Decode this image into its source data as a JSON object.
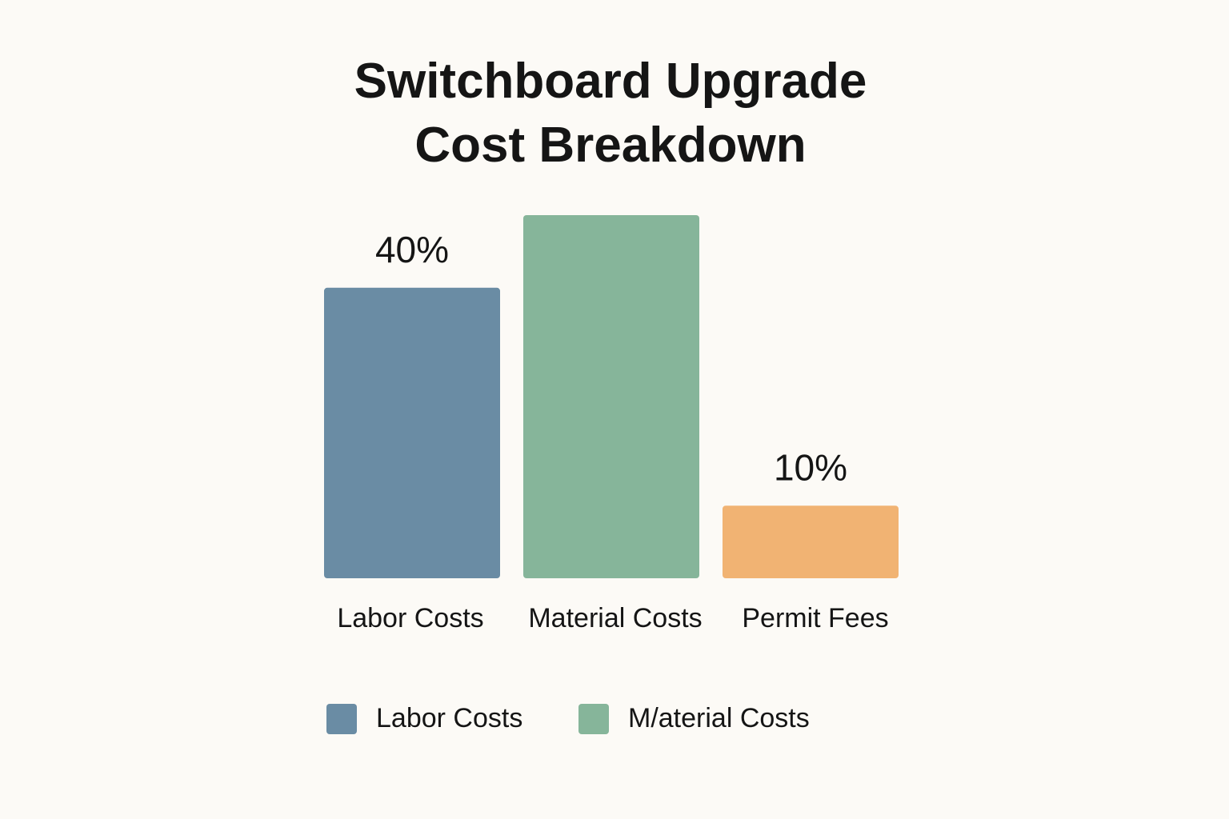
{
  "chart_data": {
    "type": "bar",
    "title": "Switchboard Upgrade Cost Breakdown",
    "categories": [
      "Labor Costs",
      "Material Costs",
      "Permit Fees"
    ],
    "values": [
      40,
      50,
      10
    ],
    "value_labels": [
      "40%",
      null,
      "10%"
    ],
    "colors": [
      "#6a8ca4",
      "#86b59a",
      "#f1b373"
    ],
    "legend": [
      {
        "name": "Labor Costs",
        "color": "#6a8ca4"
      },
      {
        "name": "M/aterial Costs",
        "color": "#86b59a"
      }
    ]
  }
}
